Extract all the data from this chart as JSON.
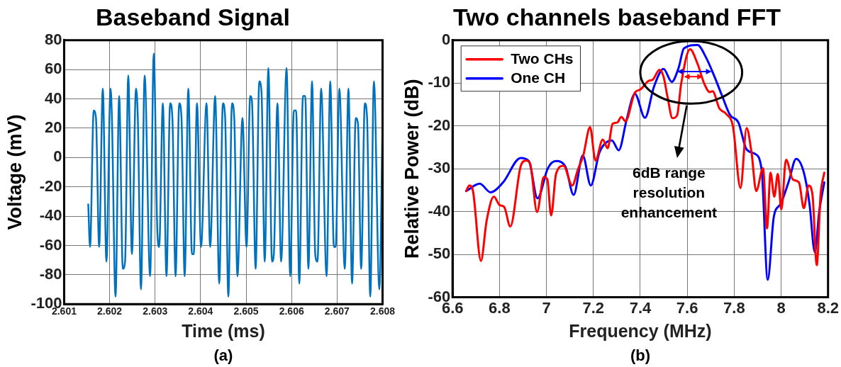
{
  "chart_data": [
    {
      "type": "line",
      "title": "Baseband Signal",
      "xlabel": "Time (ms)",
      "ylabel": "Voltage (mV)",
      "annotations": [
        "(a)"
      ],
      "xlim": [
        2.601,
        2.608
      ],
      "xticks": [
        2.601,
        2.602,
        2.603,
        2.604,
        2.605,
        2.606,
        2.607,
        2.608
      ],
      "ylim": [
        -100,
        80
      ],
      "yticks": [
        -100,
        -80,
        -60,
        -40,
        -20,
        0,
        20,
        40,
        60,
        80
      ],
      "grid": true,
      "marker": "none",
      "line_style": "solid",
      "series": [
        {
          "color": "#0072bd",
          "x": [
            2.60153,
            2.60157,
            2.60165,
            2.6017,
            2.60177,
            2.60185,
            2.60193,
            2.60202,
            2.60205,
            2.60213,
            2.60221,
            2.60229,
            2.60234,
            2.60241,
            2.60249,
            2.60258,
            2.60262,
            2.60269,
            2.60277,
            2.60289,
            2.60297,
            2.60305,
            2.60309,
            2.60317,
            2.60325,
            2.60333,
            2.60338,
            2.60345,
            2.60353,
            2.60358,
            2.60365,
            2.60373,
            2.60381,
            2.60385,
            2.60392,
            2.60401,
            2.60413,
            2.60421,
            2.60432,
            2.60441,
            2.60449,
            2.60454,
            2.60461,
            2.60469,
            2.60474,
            2.60481,
            2.60492,
            2.60501,
            2.60509,
            2.60513,
            2.60521,
            2.60529,
            2.60534,
            2.60541,
            2.60549,
            2.60557,
            2.60561,
            2.60569,
            2.60577,
            2.60589,
            2.60597,
            2.60605,
            2.6061,
            2.60617,
            2.60625,
            2.6063,
            2.60637,
            2.60645,
            2.60652,
            2.60657,
            2.60665,
            2.60677,
            2.60685,
            2.60693,
            2.60697,
            2.60705,
            2.60717,
            2.60725,
            2.60733,
            2.60741,
            2.60746,
            2.60753,
            2.60761,
            2.60766,
            2.60773,
            2.60781,
            2.60793,
            2.608
          ],
          "values": [
            -32,
            -61,
            32,
            27,
            -61,
            47,
            -71,
            47,
            28,
            -95,
            42,
            -76,
            -71,
            56,
            -66,
            47,
            27,
            -90,
            56,
            -81,
            71,
            -51,
            -61,
            37,
            -81,
            37,
            27,
            -81,
            37,
            27,
            -81,
            47,
            -66,
            -66,
            37,
            -61,
            37,
            -61,
            42,
            -86,
            37,
            27,
            -95,
            37,
            27,
            -81,
            27,
            -61,
            42,
            38,
            -76,
            52,
            44,
            -71,
            61,
            -71,
            -66,
            37,
            -71,
            61,
            -81,
            32,
            32,
            -86,
            42,
            42,
            -76,
            52,
            -66,
            -71,
            47,
            -81,
            52,
            -61,
            -61,
            47,
            -76,
            47,
            -86,
            27,
            23,
            -76,
            37,
            27,
            -95,
            52,
            -90,
            22
          ]
        }
      ]
    },
    {
      "type": "line",
      "title": "Two channels baseband FFT",
      "xlabel": "Frequency (MHz)",
      "ylabel": "Relative Power (dB)",
      "annotations": [
        "6dB range resolution enhancement",
        "(b)"
      ],
      "xlim": [
        6.6,
        8.2
      ],
      "xticks": [
        6.6,
        6.8,
        {
          "value": 7,
          "label": "7"
        },
        7.2,
        7.4,
        7.6,
        7.8,
        {
          "value": 8,
          "label": "8"
        },
        8.2
      ],
      "ylim": [
        -60,
        0
      ],
      "yticks": [
        -60,
        -50,
        -40,
        -30,
        -20,
        -10,
        0
      ],
      "grid": true,
      "legend": "top left",
      "marker": "none",
      "line_style": "solid",
      "series": [
        {
          "name": "Two CHs",
          "color": "#ff0000",
          "x": [
            6.658,
            6.672,
            6.687,
            6.721,
            6.745,
            6.776,
            6.801,
            6.82,
            6.846,
            6.89,
            6.913,
            6.931,
            6.96,
            6.989,
            7.004,
            7.02,
            7.041,
            7.073,
            7.11,
            7.134,
            7.157,
            7.186,
            7.209,
            7.24,
            7.261,
            7.282,
            7.302,
            7.319,
            7.337,
            7.377,
            7.4,
            7.435,
            7.453,
            7.482,
            7.499,
            7.516,
            7.537,
            7.557,
            7.574,
            7.612,
            7.644,
            7.673,
            7.696,
            7.708,
            7.737,
            7.766,
            7.795,
            7.827,
            7.853,
            7.874,
            7.894,
            7.923,
            7.94,
            7.955,
            7.971,
            7.986,
            8.001,
            8.021,
            8.05,
            8.076,
            8.097,
            8.117,
            8.134,
            8.152,
            8.168,
            8.184
          ],
          "values": [
            -35.2,
            -33.9,
            -35.2,
            -51.5,
            -42.2,
            -36.5,
            -38.5,
            -38.9,
            -43.5,
            -29.5,
            -28.1,
            -28.9,
            -40.1,
            -31.9,
            -32.5,
            -40.9,
            -31.2,
            -29.3,
            -33.9,
            -30.2,
            -26.9,
            -20.3,
            -28.1,
            -23.2,
            -25.2,
            -19.5,
            -19.2,
            -17.9,
            -18.9,
            -12.2,
            -11.5,
            -9.5,
            -9.2,
            -6.9,
            -8.5,
            -13.2,
            -18.2,
            -17.5,
            -10.2,
            -2.1,
            -5.5,
            -10.2,
            -12.1,
            -11.9,
            -15.9,
            -17.2,
            -20.2,
            -34.5,
            -20.5,
            -26.2,
            -35.2,
            -29.9,
            -43.9,
            -30.9,
            -36.5,
            -31.2,
            -39.5,
            -27.9,
            -32.5,
            -33.2,
            -39.2,
            -33.9,
            -36.2,
            -52.5,
            -36.2,
            -30.9
          ]
        },
        {
          "name": "One CH",
          "color": "#0000ff",
          "x": [
            6.658,
            6.716,
            6.762,
            6.815,
            6.89,
            6.925,
            6.962,
            7.006,
            7.041,
            7.081,
            7.116,
            7.155,
            7.189,
            7.226,
            7.279,
            7.308,
            7.342,
            7.377,
            7.42,
            7.458,
            7.499,
            7.534,
            7.563,
            7.586,
            7.644,
            7.679,
            7.714,
            7.748,
            7.783,
            7.818,
            7.853,
            7.888,
            7.917,
            7.943,
            7.969,
            7.998,
            8.033,
            8.064,
            8.097,
            8.121,
            8.144,
            8.162,
            8.184
          ],
          "values": [
            -35.2,
            -33.5,
            -35.5,
            -33.2,
            -27.5,
            -28.2,
            -36.9,
            -29.9,
            -28.2,
            -29.5,
            -36.1,
            -26.9,
            -33.9,
            -26.2,
            -23.4,
            -25.7,
            -18.5,
            -12.5,
            -18.1,
            -10.9,
            -6.7,
            -9.7,
            -6.5,
            -1.9,
            -1.1,
            -3.9,
            -8.2,
            -12.9,
            -17.5,
            -19.2,
            -25.5,
            -26.5,
            -30.2,
            -55.9,
            -41.2,
            -38.2,
            -32.9,
            -27.7,
            -30.9,
            -38.2,
            -49.5,
            -40.2,
            -33.2
          ]
        }
      ]
    }
  ]
}
